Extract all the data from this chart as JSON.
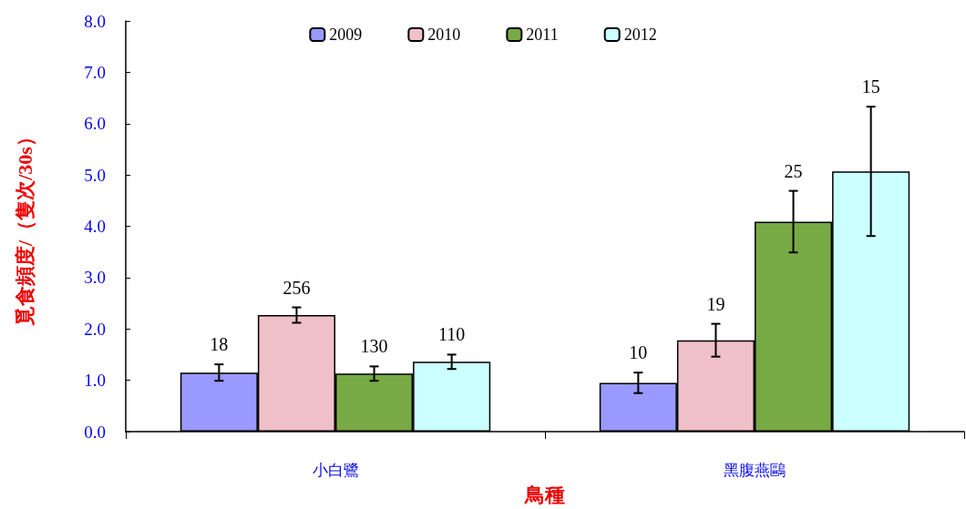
{
  "chart_data": {
    "type": "bar",
    "xlabel": "鳥種",
    "ylabel": "覓食頻度/（隻次/30s）",
    "categories": [
      "小白鷺",
      "黑腹燕鷗"
    ],
    "series": [
      {
        "name": "2009",
        "color": "#9999ff",
        "values": [
          1.15,
          0.95
        ],
        "errors": [
          0.16,
          0.2
        ]
      },
      {
        "name": "2010",
        "color": "#f0c0c8",
        "values": [
          2.27,
          1.78
        ],
        "errors": [
          0.15,
          0.32
        ]
      },
      {
        "name": "2011",
        "color": "#77aa44",
        "values": [
          1.13,
          4.09
        ],
        "errors": [
          0.14,
          0.6
        ]
      },
      {
        "name": "2012",
        "color": "#ccffff",
        "values": [
          1.36,
          5.07
        ],
        "errors": [
          0.14,
          1.26
        ]
      }
    ],
    "annotations": [
      "18",
      "256",
      "130",
      "110",
      "10",
      "19",
      "25",
      "15"
    ],
    "ylim": [
      0,
      8
    ],
    "yticks": [
      {
        "value": 0,
        "label": "0.0"
      },
      {
        "value": 1,
        "label": "1.0"
      },
      {
        "value": 2,
        "label": "2.0"
      },
      {
        "value": 3,
        "label": "3.0"
      },
      {
        "value": 4,
        "label": "4.0"
      },
      {
        "value": 5,
        "label": "5.0"
      },
      {
        "value": 6,
        "label": "6.0"
      },
      {
        "value": 7,
        "label": "7.0"
      },
      {
        "value": 8,
        "label": "8.0"
      }
    ],
    "grid": false,
    "legend": "top"
  }
}
